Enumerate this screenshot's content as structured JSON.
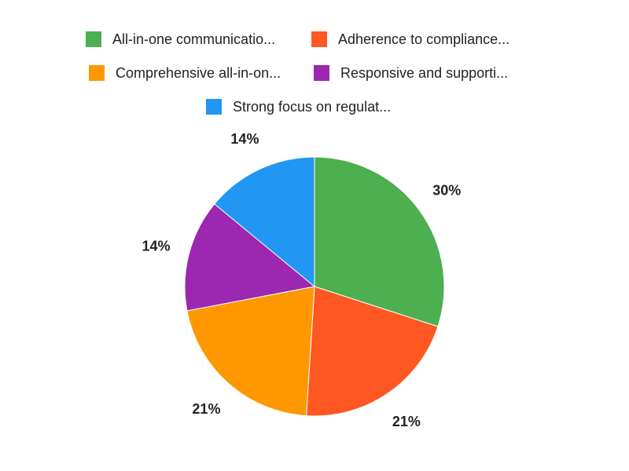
{
  "chart_data": {
    "type": "pie",
    "title": "",
    "legend_position": "top",
    "slices": [
      {
        "label": "All-in-one communicatio...",
        "value": 30,
        "data_label": "30%",
        "color": "#4CAF50"
      },
      {
        "label": "Adherence to compliance...",
        "value": 21,
        "data_label": "21%",
        "color": "#FF5722"
      },
      {
        "label": "Comprehensive all-in-on...",
        "value": 21,
        "data_label": "21%",
        "color": "#FF9800"
      },
      {
        "label": "Responsive and supporti...",
        "value": 14,
        "data_label": "14%",
        "color": "#9C27B0"
      },
      {
        "label": "Strong focus on regulat...",
        "value": 14,
        "data_label": "14%",
        "color": "#2196F3"
      }
    ]
  }
}
